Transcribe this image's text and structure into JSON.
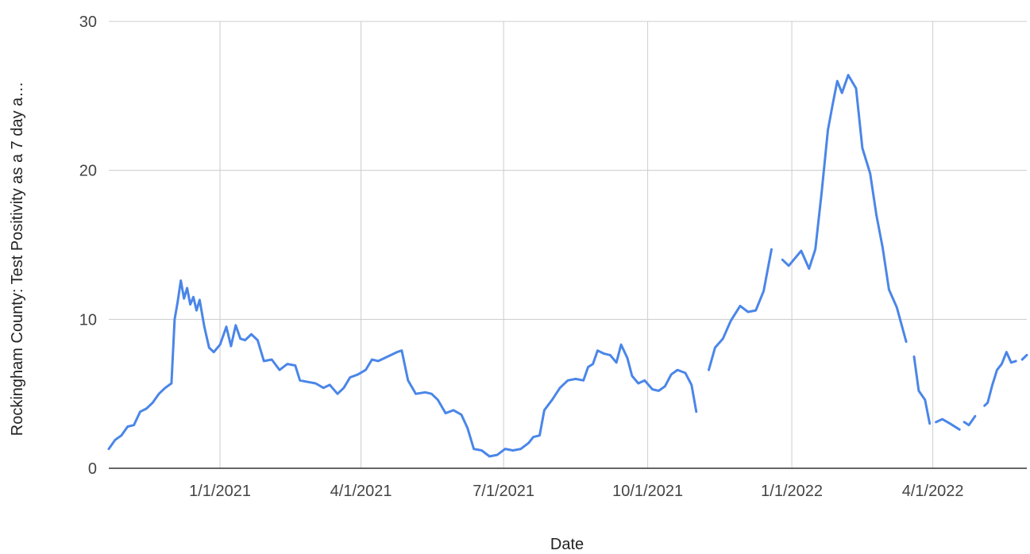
{
  "chart_data": {
    "type": "line",
    "title": "",
    "xlabel": "Date",
    "ylabel": "Rockingham County: Test Positivity as a 7 day a…",
    "ylim": [
      0,
      30
    ],
    "xlim": [
      "2020-10-22",
      "2022-05-31"
    ],
    "yticks": [
      "0",
      "10",
      "20",
      "30"
    ],
    "xticks": [
      {
        "date": "2021-01-01",
        "label": "1/1/2021"
      },
      {
        "date": "2021-04-01",
        "label": "4/1/2021"
      },
      {
        "date": "2021-07-01",
        "label": "7/1/2021"
      },
      {
        "date": "2021-10-01",
        "label": "10/1/2021"
      },
      {
        "date": "2022-01-01",
        "label": "1/1/2022"
      },
      {
        "date": "2022-04-01",
        "label": "4/1/2022"
      }
    ],
    "grid": true,
    "line_color": "#4a86e8",
    "series": [
      {
        "name": "",
        "segments": [
          [
            [
              "2020-10-22",
              1.3
            ],
            [
              "2020-10-26",
              1.9
            ],
            [
              "2020-10-30",
              2.2
            ],
            [
              "2020-11-03",
              2.8
            ],
            [
              "2020-11-07",
              2.9
            ],
            [
              "2020-11-11",
              3.8
            ],
            [
              "2020-11-15",
              4.0
            ],
            [
              "2020-11-19",
              4.4
            ],
            [
              "2020-11-23",
              5.0
            ],
            [
              "2020-11-27",
              5.4
            ],
            [
              "2020-12-01",
              5.7
            ],
            [
              "2020-12-03",
              10.0
            ],
            [
              "2020-12-05",
              11.2
            ],
            [
              "2020-12-07",
              12.6
            ],
            [
              "2020-12-09",
              11.4
            ],
            [
              "2020-12-11",
              12.1
            ],
            [
              "2020-12-13",
              11.0
            ],
            [
              "2020-12-15",
              11.5
            ],
            [
              "2020-12-17",
              10.6
            ],
            [
              "2020-12-19",
              11.3
            ],
            [
              "2020-12-22",
              9.5
            ],
            [
              "2020-12-25",
              8.1
            ],
            [
              "2020-12-28",
              7.8
            ],
            [
              "2021-01-01",
              8.3
            ],
            [
              "2021-01-05",
              9.5
            ],
            [
              "2021-01-08",
              8.2
            ],
            [
              "2021-01-11",
              9.6
            ],
            [
              "2021-01-14",
              8.7
            ],
            [
              "2021-01-17",
              8.6
            ],
            [
              "2021-01-21",
              9.0
            ],
            [
              "2021-01-25",
              8.6
            ],
            [
              "2021-01-29",
              7.2
            ],
            [
              "2021-02-03",
              7.3
            ],
            [
              "2021-02-08",
              6.6
            ],
            [
              "2021-02-13",
              7.0
            ],
            [
              "2021-02-18",
              6.9
            ],
            [
              "2021-02-21",
              5.9
            ],
            [
              "2021-02-26",
              5.8
            ],
            [
              "2021-03-03",
              5.7
            ],
            [
              "2021-03-08",
              5.4
            ],
            [
              "2021-03-12",
              5.6
            ],
            [
              "2021-03-17",
              5.0
            ],
            [
              "2021-03-21",
              5.4
            ],
            [
              "2021-03-25",
              6.1
            ],
            [
              "2021-03-30",
              6.3
            ],
            [
              "2021-04-04",
              6.6
            ],
            [
              "2021-04-08",
              7.3
            ],
            [
              "2021-04-12",
              7.2
            ],
            [
              "2021-04-16",
              7.4
            ],
            [
              "2021-04-20",
              7.6
            ],
            [
              "2021-04-24",
              7.8
            ],
            [
              "2021-04-27",
              7.9
            ],
            [
              "2021-05-01",
              5.9
            ],
            [
              "2021-05-06",
              5.0
            ],
            [
              "2021-05-12",
              5.1
            ],
            [
              "2021-05-16",
              5.0
            ],
            [
              "2021-05-20",
              4.6
            ],
            [
              "2021-05-25",
              3.7
            ],
            [
              "2021-05-30",
              3.9
            ],
            [
              "2021-06-04",
              3.6
            ],
            [
              "2021-06-08",
              2.7
            ],
            [
              "2021-06-12",
              1.3
            ],
            [
              "2021-06-17",
              1.2
            ],
            [
              "2021-06-22",
              0.8
            ],
            [
              "2021-06-27",
              0.9
            ],
            [
              "2021-07-02",
              1.3
            ],
            [
              "2021-07-07",
              1.2
            ],
            [
              "2021-07-12",
              1.3
            ],
            [
              "2021-07-17",
              1.7
            ],
            [
              "2021-07-20",
              2.1
            ],
            [
              "2021-07-24",
              2.2
            ],
            [
              "2021-07-27",
              3.9
            ],
            [
              "2021-08-01",
              4.6
            ],
            [
              "2021-08-06",
              5.4
            ],
            [
              "2021-08-11",
              5.9
            ],
            [
              "2021-08-16",
              6.0
            ],
            [
              "2021-08-21",
              5.9
            ],
            [
              "2021-08-24",
              6.8
            ],
            [
              "2021-08-27",
              7.0
            ],
            [
              "2021-08-30",
              7.9
            ],
            [
              "2021-09-03",
              7.7
            ],
            [
              "2021-09-07",
              7.6
            ],
            [
              "2021-09-11",
              7.1
            ],
            [
              "2021-09-14",
              8.3
            ],
            [
              "2021-09-18",
              7.4
            ],
            [
              "2021-09-21",
              6.2
            ],
            [
              "2021-09-25",
              5.7
            ],
            [
              "2021-09-29",
              5.9
            ],
            [
              "2021-10-04",
              5.3
            ],
            [
              "2021-10-08",
              5.2
            ],
            [
              "2021-10-12",
              5.5
            ],
            [
              "2021-10-16",
              6.3
            ],
            [
              "2021-10-20",
              6.6
            ],
            [
              "2021-10-25",
              6.4
            ],
            [
              "2021-10-29",
              5.6
            ],
            [
              "2021-11-01",
              3.8
            ]
          ],
          [
            [
              "2021-11-09",
              6.6
            ],
            [
              "2021-11-13",
              8.1
            ],
            [
              "2021-11-18",
              8.7
            ],
            [
              "2021-11-23",
              9.9
            ],
            [
              "2021-11-29",
              10.9
            ],
            [
              "2021-12-04",
              10.5
            ],
            [
              "2021-12-09",
              10.6
            ],
            [
              "2021-12-14",
              11.9
            ],
            [
              "2021-12-19",
              14.7
            ]
          ],
          [
            [
              "2021-12-26",
              14.0
            ],
            [
              "2021-12-30",
              13.6
            ],
            [
              "2022-01-03",
              14.1
            ],
            [
              "2022-01-07",
              14.6
            ],
            [
              "2022-01-12",
              13.4
            ],
            [
              "2022-01-16",
              14.7
            ],
            [
              "2022-01-20",
              18.5
            ],
            [
              "2022-01-24",
              22.7
            ],
            [
              "2022-01-27",
              24.4
            ],
            [
              "2022-01-30",
              26.0
            ],
            [
              "2022-02-02",
              25.2
            ],
            [
              "2022-02-06",
              26.4
            ],
            [
              "2022-02-11",
              25.5
            ],
            [
              "2022-02-15",
              21.5
            ],
            [
              "2022-02-20",
              19.8
            ],
            [
              "2022-02-24",
              17.0
            ],
            [
              "2022-02-28",
              14.8
            ],
            [
              "2022-03-04",
              12.0
            ],
            [
              "2022-03-09",
              10.8
            ],
            [
              "2022-03-15",
              8.5
            ]
          ],
          [
            [
              "2022-03-20",
              7.5
            ],
            [
              "2022-03-23",
              5.2
            ],
            [
              "2022-03-27",
              4.6
            ],
            [
              "2022-03-30",
              3.0
            ]
          ],
          [
            [
              "2022-04-03",
              3.1
            ],
            [
              "2022-04-07",
              3.3
            ],
            [
              "2022-04-12",
              3.0
            ],
            [
              "2022-04-18",
              2.6
            ]
          ],
          [
            [
              "2022-04-21",
              3.1
            ],
            [
              "2022-04-24",
              2.9
            ],
            [
              "2022-04-28",
              3.5
            ]
          ],
          [
            [
              "2022-05-04",
              4.2
            ],
            [
              "2022-05-06",
              4.4
            ],
            [
              "2022-05-09",
              5.6
            ],
            [
              "2022-05-12",
              6.6
            ],
            [
              "2022-05-15",
              7.0
            ],
            [
              "2022-05-18",
              7.8
            ],
            [
              "2022-05-21",
              7.1
            ],
            [
              "2022-05-24",
              7.2
            ]
          ],
          [
            [
              "2022-05-28",
              7.3
            ],
            [
              "2022-05-31",
              7.6
            ]
          ]
        ]
      }
    ]
  }
}
